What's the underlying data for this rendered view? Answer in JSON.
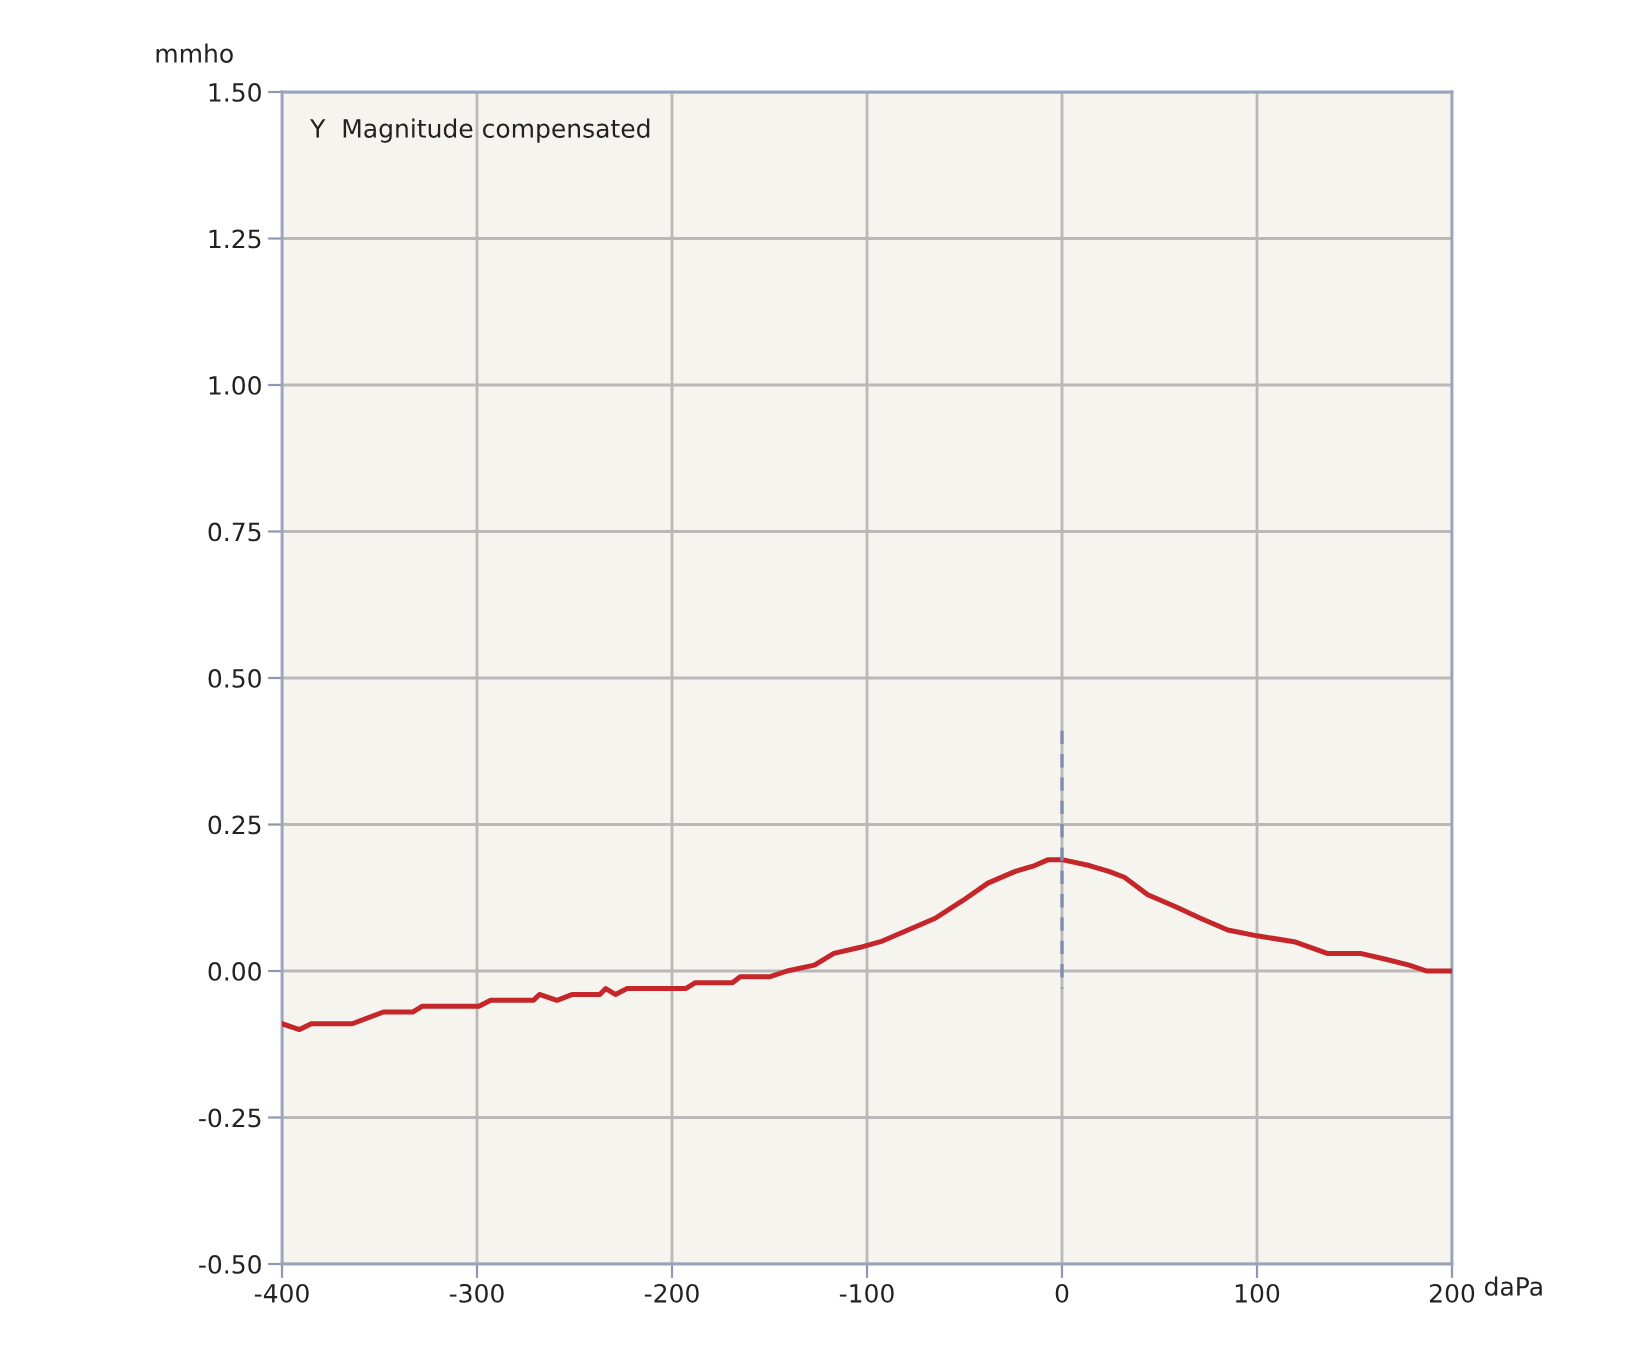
{
  "chart_data": {
    "type": "line",
    "title": "Y  Magnitude compensated",
    "xlabel": "daPa",
    "ylabel": "mmho",
    "xlim": [
      -400,
      200
    ],
    "ylim": [
      -0.5,
      1.5
    ],
    "xticks": [
      -400,
      -300,
      -200,
      -100,
      0,
      100,
      200
    ],
    "yticks": [
      {
        "value": -0.5,
        "label": "-0.50"
      },
      {
        "value": -0.25,
        "label": "-0.25"
      },
      {
        "value": 0,
        "label": "0.00"
      },
      {
        "value": 0.25,
        "label": "0.25"
      },
      {
        "value": 0.5,
        "label": "0.50"
      },
      {
        "value": 0.75,
        "label": "0.75"
      },
      {
        "value": 1.0,
        "label": "1.00"
      },
      {
        "value": 1.25,
        "label": "1.25"
      },
      {
        "value": 1.5,
        "label": "1.50"
      }
    ],
    "grid": true,
    "series": [
      {
        "color": "#c4262a",
        "line_style": "solid",
        "x": [
          -400,
          -391,
          -385,
          -364,
          -348,
          -333,
          -328,
          -299,
          -293,
          -271,
          -268,
          -259,
          -251,
          -237,
          -234,
          -229,
          -223,
          -193,
          -188,
          -169,
          -165,
          -150,
          -141,
          -127,
          -117,
          -104,
          -93,
          -79,
          -65,
          -51,
          -38,
          -24,
          -14,
          -7,
          0,
          14,
          24,
          32,
          44,
          58,
          71,
          85,
          100,
          119,
          136,
          153,
          166,
          178,
          187,
          200
        ],
        "values": [
          -0.09,
          -0.1,
          -0.09,
          -0.09,
          -0.07,
          -0.07,
          -0.06,
          -0.06,
          -0.05,
          -0.05,
          -0.04,
          -0.05,
          -0.04,
          -0.04,
          -0.03,
          -0.04,
          -0.03,
          -0.03,
          -0.02,
          -0.02,
          -0.01,
          -0.01,
          0.0,
          0.01,
          0.03,
          0.04,
          0.05,
          0.07,
          0.09,
          0.12,
          0.15,
          0.17,
          0.18,
          0.19,
          0.19,
          0.18,
          0.17,
          0.16,
          0.13,
          0.11,
          0.09,
          0.07,
          0.06,
          0.05,
          0.03,
          0.03,
          0.02,
          0.01,
          0.0,
          0.0
        ]
      },
      {
        "color": "#7f8db0",
        "line_style": "dashed",
        "x": [
          0,
          0
        ],
        "values": [
          0.41,
          -0.03
        ]
      }
    ]
  }
}
